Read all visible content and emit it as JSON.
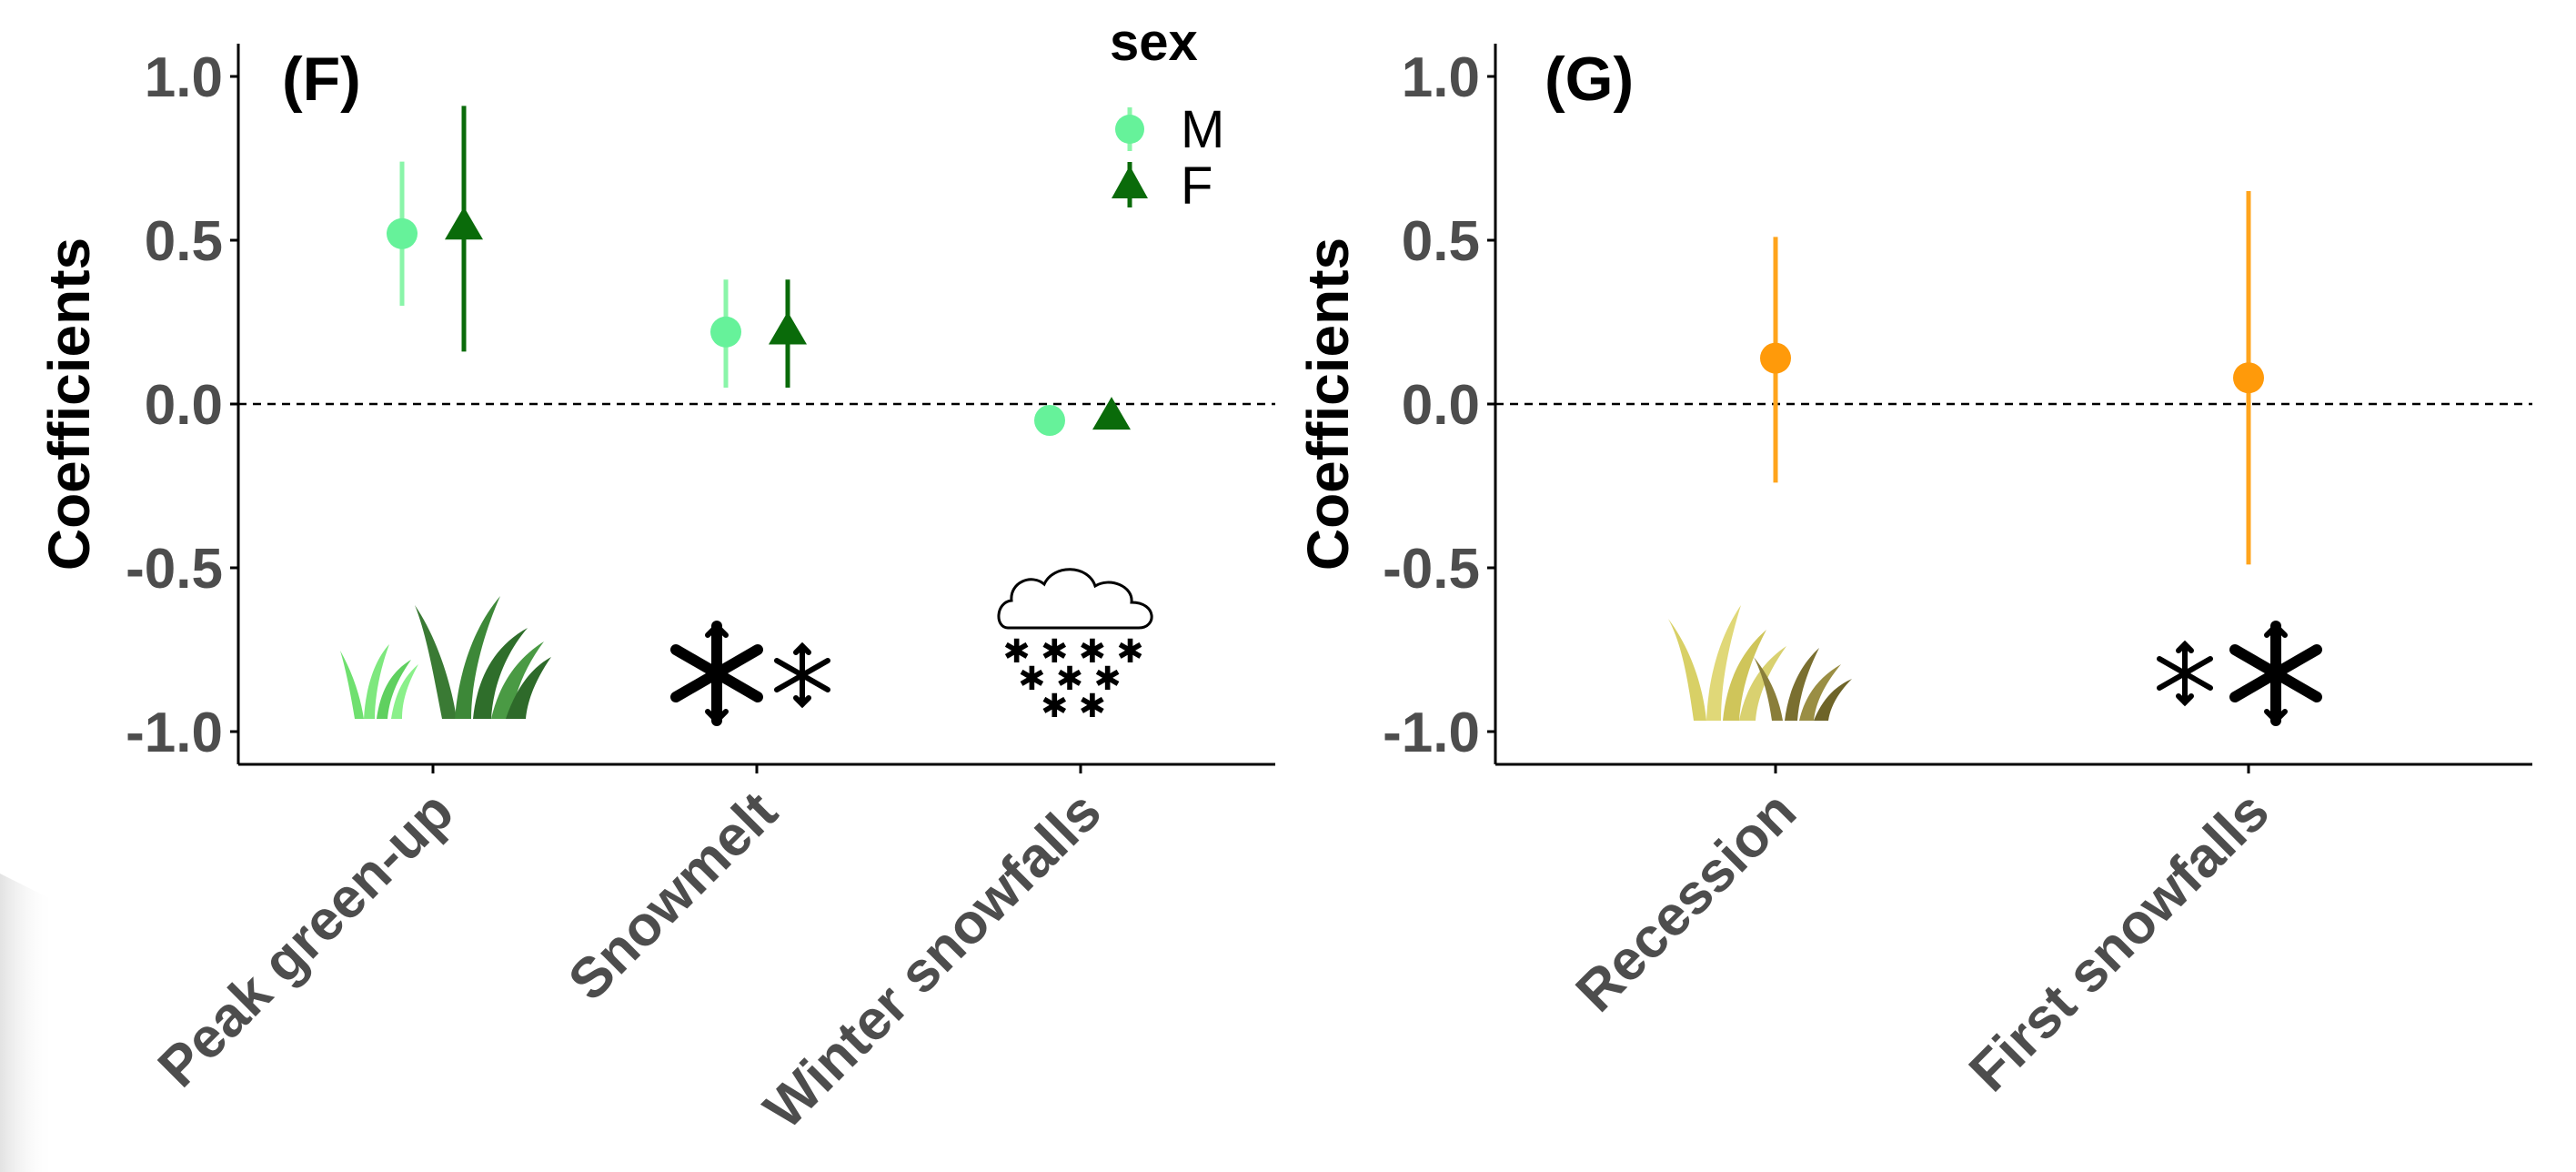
{
  "chart_data": [
    {
      "type": "scatter",
      "panel_label": "(F)",
      "ylabel": "Coefficients",
      "ylim": [
        -1.1,
        1.1
      ],
      "yticks": [
        1.0,
        0.5,
        0.0,
        -0.5,
        -1.0
      ],
      "ytick_labels": [
        "1.0",
        "0.5",
        "0.0",
        "-0.5",
        "-1.0"
      ],
      "reference_line": 0.0,
      "categories": [
        "Peak green-up",
        "Snowmelt",
        "Winter snowfalls"
      ],
      "category_icons": [
        "grass-icon",
        "snowflakes-icon",
        "snow-cloud-icon"
      ],
      "legend": {
        "title": "sex",
        "position": "top-right",
        "entries": [
          {
            "label": "M",
            "shape": "circle",
            "color": "#66f29a"
          },
          {
            "label": "F",
            "shape": "triangle",
            "color": "#0a6b0a"
          }
        ]
      },
      "series": [
        {
          "name": "M",
          "shape": "circle",
          "color": "#66f29a",
          "errorbar_color": "#8af5a9",
          "values": [
            0.52,
            0.22,
            -0.05
          ],
          "lower": [
            0.3,
            0.05,
            -0.05
          ],
          "upper": [
            0.74,
            0.38,
            -0.05
          ]
        },
        {
          "name": "F",
          "shape": "triangle",
          "color": "#0a6b0a",
          "errorbar_color": "#0a6b0a",
          "values": [
            0.54,
            0.22,
            -0.04
          ],
          "lower": [
            0.16,
            0.05,
            -0.04
          ],
          "upper": [
            0.91,
            0.38,
            -0.04
          ]
        }
      ]
    },
    {
      "type": "scatter",
      "panel_label": "(G)",
      "ylabel": "Coefficients",
      "ylim": [
        -1.1,
        1.1
      ],
      "yticks": [
        1.0,
        0.5,
        0.0,
        -0.5,
        -1.0
      ],
      "ytick_labels": [
        "1.0",
        "0.5",
        "0.0",
        "-0.5",
        "-1.0"
      ],
      "reference_line": 0.0,
      "categories": [
        "Recession",
        "First snowfalls"
      ],
      "category_icons": [
        "dry-grass-icon",
        "snowflakes-icon"
      ],
      "series": [
        {
          "name": "",
          "shape": "circle",
          "color": "#ff9a0a",
          "errorbar_color": "#ffa41c",
          "values": [
            0.14,
            0.08
          ],
          "lower": [
            -0.24,
            -0.49
          ],
          "upper": [
            0.51,
            0.65
          ]
        }
      ]
    }
  ]
}
